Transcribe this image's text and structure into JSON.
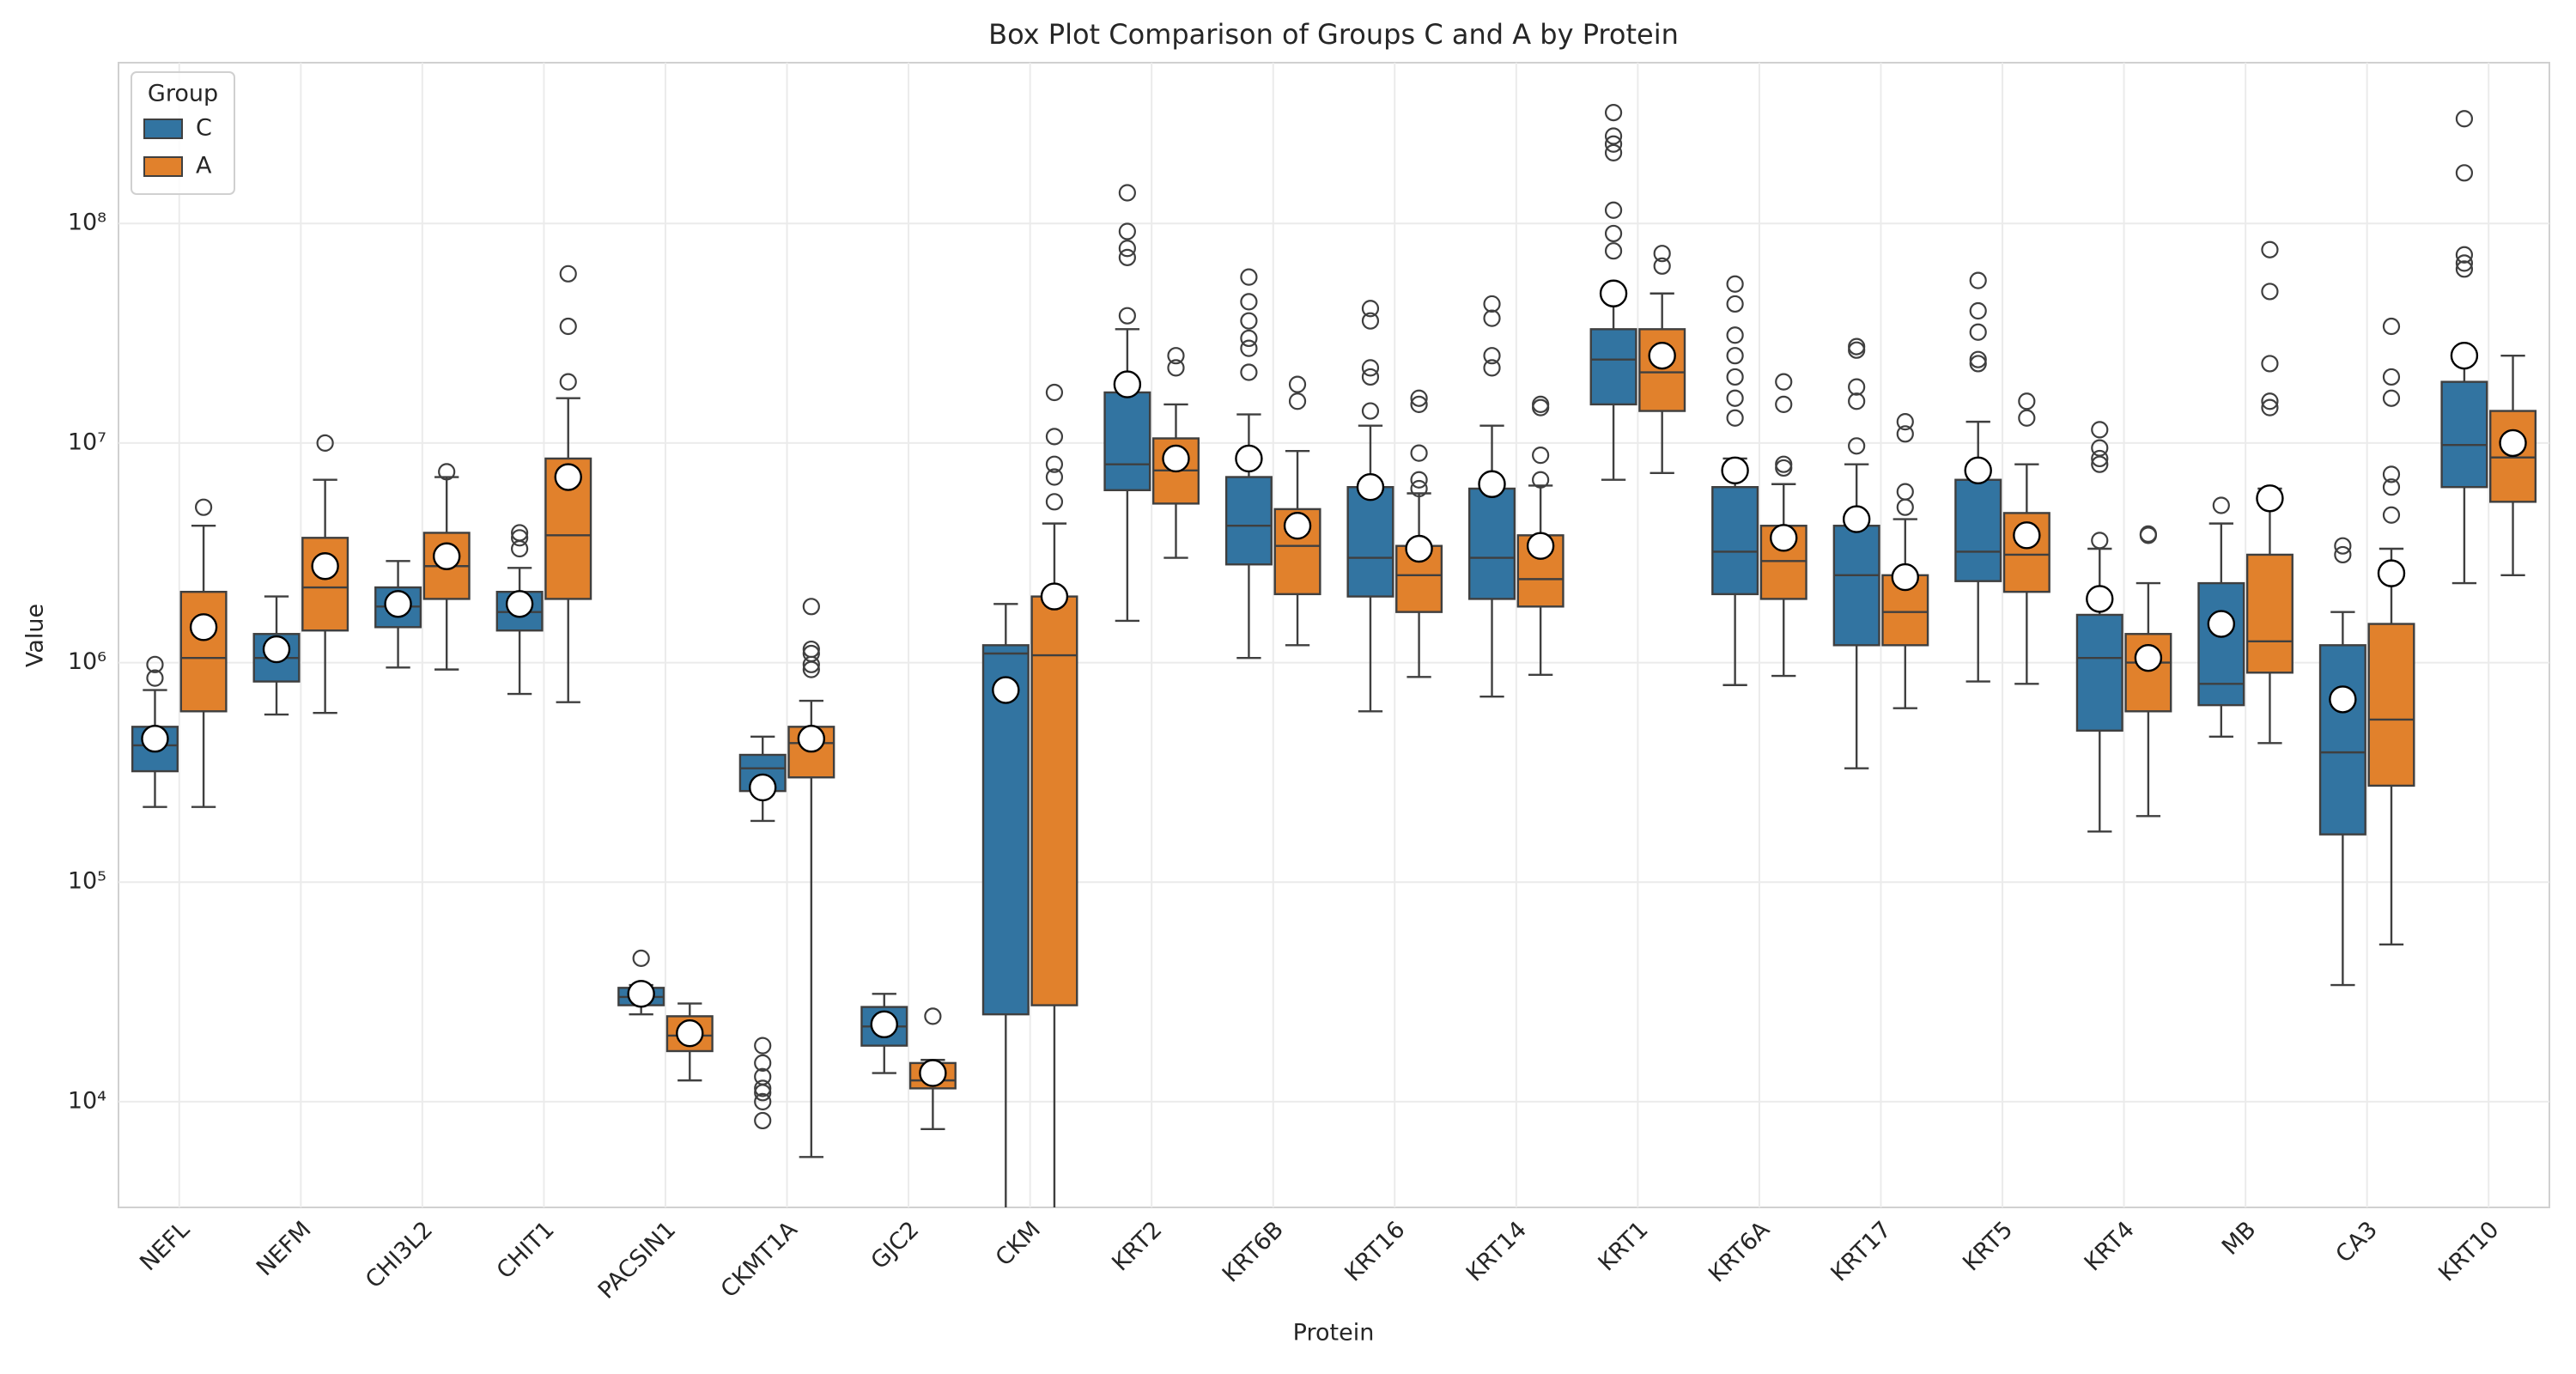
{
  "chart_data": {
    "type": "boxplot",
    "title": "Box Plot Comparison of Groups C and A by Protein",
    "x_label": "Protein",
    "y_label": "Value",
    "legend_title": "Group",
    "legend_position": "upper left",
    "log_scale": true,
    "grid": true,
    "categories": [
      "NEFL",
      "NEFM",
      "CHI3L2",
      "CHIT1",
      "PACSIN1",
      "CKMT1A",
      "GJC2",
      "CKM",
      "KRT2",
      "KRT6B",
      "KRT16",
      "KRT14",
      "KRT1",
      "KRT6A",
      "KRT17",
      "KRT5",
      "KRT4",
      "MB",
      "CA3",
      "KRT10"
    ],
    "ylim": [
      3300,
      540000000
    ],
    "yticks": [
      {
        "value": 10000,
        "label": "10⁴"
      },
      {
        "value": 100000,
        "label": "10⁵"
      },
      {
        "value": 1000000,
        "label": "10⁶"
      },
      {
        "value": 10000000,
        "label": "10⁷"
      },
      {
        "value": 100000000,
        "label": "10⁸"
      }
    ],
    "series": [
      {
        "name": "C",
        "color": "#3274a1",
        "whislo": [
          220000,
          580000,
          950000,
          720000,
          25000,
          190000,
          13500,
          1000,
          1550000,
          1050000,
          600000,
          700000,
          6800000,
          790000,
          330000,
          820000,
          170000,
          460000,
          34000,
          2300000
        ],
        "q1": [
          320000,
          820000,
          1450000,
          1400000,
          27500,
          260000,
          18000,
          25000,
          6100000,
          2800000,
          2000000,
          1950000,
          15000000,
          2050000,
          1200000,
          2350000,
          490000,
          640000,
          165000,
          6300000
        ],
        "med": [
          420000,
          1050000,
          1800000,
          1700000,
          30000,
          330000,
          22000,
          1100000,
          8000000,
          4200000,
          3000000,
          3000000,
          24000000,
          3200000,
          2500000,
          3200000,
          1050000,
          800000,
          390000,
          9800000
        ],
        "q3": [
          510000,
          1350000,
          2200000,
          2100000,
          33000,
          380000,
          27000,
          1200000,
          17000000,
          7000000,
          6300000,
          6200000,
          33000000,
          6300000,
          4200000,
          6800000,
          1650000,
          2300000,
          1200000,
          19000000
        ],
        "whishi": [
          750000,
          2000000,
          2900000,
          2700000,
          34000,
          460000,
          31000,
          1850000,
          33000000,
          13500000,
          12000000,
          12000000,
          45000000,
          8500000,
          8000000,
          12500000,
          3300000,
          4300000,
          1700000,
          25000000
        ],
        "mean": [
          450000,
          1150000,
          1850000,
          1850000,
          31000,
          270000,
          22500,
          750000,
          18500000,
          8500000,
          6300000,
          6500000,
          48000000,
          7500000,
          4500000,
          7500000,
          1950000,
          1500000,
          680000,
          25000000
        ],
        "fliers": [
          [
            850000,
            980000
          ],
          [],
          [],
          [
            3300000,
            3700000,
            3900000
          ],
          [
            45000
          ],
          [
            8200,
            10000,
            11000,
            11500,
            13000,
            15000,
            18000
          ],
          [],
          [],
          [
            38000000,
            70000000,
            77000000,
            92000000,
            138000000
          ],
          [
            21000000,
            27000000,
            30000000,
            36000000,
            44000000,
            57000000
          ],
          [
            14000000,
            20000000,
            22000000,
            36000000,
            41000000
          ],
          [
            22000000,
            25000000,
            37000000,
            43000000
          ],
          [
            75000000,
            90000000,
            115000000,
            210000000,
            230000000,
            250000000,
            320000000
          ],
          [
            13000000,
            16000000,
            20000000,
            25000000,
            31000000,
            43000000,
            53000000
          ],
          [
            9700000,
            15500000,
            18000000,
            26500000,
            27500000
          ],
          [
            23000000,
            24000000,
            32000000,
            40000000,
            55000000
          ],
          [
            3600000,
            8000000,
            8500000,
            9500000,
            11500000
          ],
          [
            5200000
          ],
          [
            3100000,
            3400000
          ],
          [
            62000000,
            66000000,
            72000000,
            170000000,
            300000000
          ]
        ]
      },
      {
        "name": "A",
        "color": "#e1812c",
        "whislo": [
          220000,
          590000,
          930000,
          660000,
          12500,
          5600,
          7500,
          1000,
          3000000,
          1200000,
          860000,
          880000,
          7300000,
          870000,
          620000,
          800000,
          200000,
          430000,
          52000,
          2500000
        ],
        "q1": [
          600000,
          1400000,
          1950000,
          1950000,
          17000,
          300000,
          11500,
          27500,
          5300000,
          2050000,
          1700000,
          1800000,
          14000000,
          1950000,
          1200000,
          2100000,
          600000,
          900000,
          275000,
          5400000
        ],
        "med": [
          1050000,
          2200000,
          2750000,
          3800000,
          20000,
          430000,
          12500,
          1080000,
          7500000,
          3400000,
          2500000,
          2400000,
          21000000,
          2900000,
          1700000,
          3100000,
          1000000,
          1250000,
          550000,
          8600000
        ],
        "q3": [
          2100000,
          3700000,
          3900000,
          8500000,
          24500,
          510000,
          15000,
          2000000,
          10500000,
          5000000,
          3400000,
          3800000,
          33000000,
          4200000,
          2500000,
          4800000,
          1350000,
          3100000,
          1500000,
          14000000
        ],
        "whishi": [
          4200000,
          6800000,
          7000000,
          16000000,
          28000,
          670000,
          15500,
          4300000,
          15000000,
          9200000,
          5900000,
          6400000,
          48000000,
          6500000,
          4500000,
          8000000,
          2300000,
          6200000,
          3300000,
          25000000
        ],
        "mean": [
          1450000,
          2750000,
          3050000,
          7000000,
          20500,
          450000,
          13500,
          2000000,
          8500000,
          4200000,
          3300000,
          3400000,
          25000000,
          3700000,
          2450000,
          3800000,
          1050000,
          5600000,
          2550000,
          10000000
        ],
        "fliers": [
          [
            5100000
          ],
          [
            10000000
          ],
          [
            7400000
          ],
          [
            19000000,
            34000000,
            59000000
          ],
          [],
          [
            930000,
            980000,
            1100000,
            1150000,
            1800000
          ],
          [
            24500
          ],
          [
            5400000,
            7000000,
            8000000,
            10700000,
            17000000
          ],
          [
            22000000,
            25000000
          ],
          [
            15500000,
            18500000
          ],
          [
            6200000,
            6800000,
            9000000,
            15000000,
            16000000
          ],
          [
            6800000,
            8800000,
            14500000,
            15000000
          ],
          [
            64000000,
            73000000
          ],
          [
            7700000,
            8000000,
            15000000,
            19000000
          ],
          [
            5100000,
            6000000,
            11000000,
            12500000
          ],
          [
            13000000,
            15500000
          ],
          [
            3800000,
            3850000
          ],
          [
            14500000,
            15500000,
            23000000,
            49000000,
            76000000
          ],
          [
            4700000,
            6300000,
            7200000,
            16000000,
            20000000,
            34000000
          ],
          []
        ]
      }
    ]
  }
}
